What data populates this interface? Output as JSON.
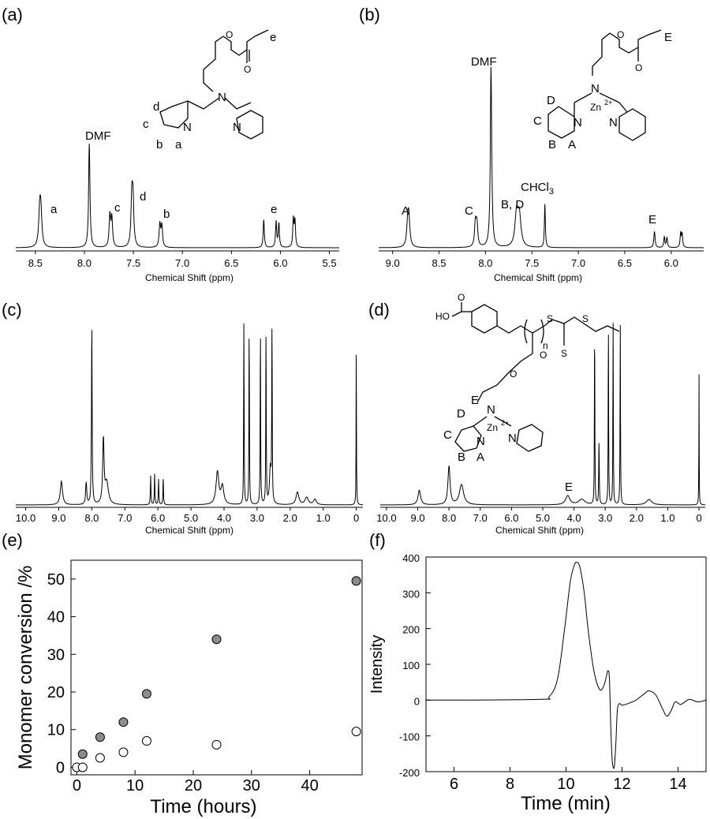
{
  "chart_data": [
    {
      "type": "line",
      "panel_label": "(a)",
      "xlabel": "Chemical Shift (ppm)",
      "xticks": [
        "8.5",
        "8.0",
        "7.5",
        "7.0",
        "6.5",
        "6.0",
        "5.5"
      ],
      "xlim": [
        8.7,
        5.4
      ],
      "series": [
        {
          "peaks": [
            {
              "x": 8.45,
              "h": 0.33,
              "w": 0.012,
              "label": "a",
              "split": 0.012
            },
            {
              "x": 7.95,
              "h": 1.0,
              "w": 0.008,
              "label": "DMF"
            },
            {
              "x": 7.73,
              "h": 0.3,
              "w": 0.009,
              "label": "c",
              "split": 0.02
            },
            {
              "x": 7.51,
              "h": 0.45,
              "w": 0.01,
              "label": "d",
              "split": 0.012
            },
            {
              "x": 7.22,
              "h": 0.22,
              "w": 0.009,
              "label": "b",
              "split": 0.02
            },
            {
              "x": 6.17,
              "h": 0.27,
              "w": 0.007
            },
            {
              "x": 6.03,
              "h": 0.25,
              "w": 0.007,
              "label": "e",
              "split": 0.028
            },
            {
              "x": 5.86,
              "h": 0.27,
              "w": 0.007,
              "split": 0.016
            }
          ]
        }
      ],
      "peak_labels": [
        "a",
        "DMF",
        "c",
        "d",
        "b",
        "e"
      ]
    },
    {
      "type": "line",
      "panel_label": "(b)",
      "xlabel": "Chemical Shift (ppm)",
      "xticks": [
        "9.0",
        "8.5",
        "8.0",
        "7.5",
        "7.0",
        "6.5",
        "6.0"
      ],
      "xlim": [
        9.15,
        5.65
      ],
      "series": [
        {
          "peaks": [
            {
              "x": 8.83,
              "h": 0.14,
              "w": 0.013,
              "split": 0.012
            },
            {
              "x": 8.1,
              "h": 0.13,
              "w": 0.011,
              "split": 0.016
            },
            {
              "x": 7.94,
              "h": 1.0,
              "w": 0.009
            },
            {
              "x": 7.65,
              "h": 0.18,
              "w": 0.02,
              "split": 0.03
            },
            {
              "x": 7.36,
              "h": 0.24,
              "w": 0.006
            },
            {
              "x": 6.18,
              "h": 0.09,
              "w": 0.008
            },
            {
              "x": 6.06,
              "h": 0.06,
              "w": 0.007,
              "split": 0.028
            },
            {
              "x": 5.89,
              "h": 0.08,
              "w": 0.007,
              "split": 0.016
            }
          ]
        }
      ],
      "peak_labels": [
        "A",
        "DMF",
        "B, D",
        "CHCl3",
        "C",
        "E"
      ]
    },
    {
      "type": "line",
      "panel_label": "(c)",
      "xlabel": "Chemical Shift (ppm)",
      "xticks": [
        "10.0",
        "9.0",
        "8.0",
        "7.0",
        "6.0",
        "5.0",
        "4.0",
        "3.0",
        "2.0",
        "1.0",
        "0"
      ],
      "xlim": [
        10.3,
        -0.2
      ],
      "series": [
        {
          "peaks": [
            {
              "x": 8.92,
              "h": 0.13,
              "w": 0.04
            },
            {
              "x": 8.17,
              "h": 0.12,
              "w": 0.02
            },
            {
              "x": 8.0,
              "h": 1.0,
              "w": 0.012
            },
            {
              "x": 7.65,
              "h": 0.35,
              "w": 0.025
            },
            {
              "x": 7.55,
              "h": 0.12,
              "w": 0.06
            },
            {
              "x": 6.22,
              "h": 0.16,
              "w": 0.01
            },
            {
              "x": 6.1,
              "h": 0.17,
              "w": 0.01
            },
            {
              "x": 5.98,
              "h": 0.14,
              "w": 0.01
            },
            {
              "x": 5.84,
              "h": 0.15,
              "w": 0.01
            },
            {
              "x": 4.2,
              "h": 0.18,
              "w": 0.05
            },
            {
              "x": 4.05,
              "h": 0.1,
              "w": 0.05
            },
            {
              "x": 3.4,
              "h": 1.0,
              "w": 0.008
            },
            {
              "x": 3.24,
              "h": 1.0,
              "w": 0.008
            },
            {
              "x": 2.9,
              "h": 1.0,
              "w": 0.008
            },
            {
              "x": 2.73,
              "h": 1.0,
              "w": 0.008
            },
            {
              "x": 2.55,
              "h": 1.0,
              "w": 0.008
            },
            {
              "x": 2.6,
              "h": 0.2,
              "w": 0.03
            },
            {
              "x": 1.78,
              "h": 0.07,
              "w": 0.05
            },
            {
              "x": 1.5,
              "h": 0.04,
              "w": 0.06
            },
            {
              "x": 1.25,
              "h": 0.03,
              "w": 0.05
            },
            {
              "x": 0.0,
              "h": 0.97,
              "w": 0.006
            }
          ]
        }
      ]
    },
    {
      "type": "line",
      "panel_label": "(d)",
      "xlabel": "Chemical Shift (ppm)",
      "xticks": [
        "10.0",
        "9.0",
        "8.0",
        "7.0",
        "6.0",
        "5.0",
        "4.0",
        "3.0",
        "2.0",
        "1.0",
        "0"
      ],
      "xlim": [
        10.2,
        -0.2
      ],
      "series": [
        {
          "peaks": [
            {
              "x": 8.95,
              "h": 0.08,
              "w": 0.05
            },
            {
              "x": 8.0,
              "h": 0.21,
              "w": 0.04
            },
            {
              "x": 7.6,
              "h": 0.11,
              "w": 0.08
            },
            {
              "x": 4.2,
              "h": 0.05,
              "w": 0.08
            },
            {
              "x": 3.75,
              "h": 0.03,
              "w": 0.12
            },
            {
              "x": 3.34,
              "h": 1.0,
              "w": 0.008
            },
            {
              "x": 3.2,
              "h": 0.35,
              "w": 0.01
            },
            {
              "x": 2.9,
              "h": 1.0,
              "w": 0.008
            },
            {
              "x": 2.75,
              "h": 1.0,
              "w": 0.008
            },
            {
              "x": 2.52,
              "h": 1.0,
              "w": 0.008
            },
            {
              "x": 1.6,
              "h": 0.03,
              "w": 0.1
            },
            {
              "x": 0.0,
              "h": 0.72,
              "w": 0.006
            }
          ]
        }
      ],
      "peak_labels": [
        "E"
      ]
    },
    {
      "type": "scatter",
      "panel_label": "(e)",
      "xlabel": "Time (hours)",
      "ylabel": "Monomer conversion /%",
      "xlim": [
        -1,
        49
      ],
      "ylim": [
        -2,
        55
      ],
      "xticks": [
        "0",
        "10",
        "20",
        "30",
        "40"
      ],
      "yticks": [
        "0",
        "10",
        "20",
        "30",
        "40",
        "50"
      ],
      "series": [
        {
          "fill": "#8c8c8c",
          "x": [
            1,
            4,
            8,
            12,
            24,
            48
          ],
          "y": [
            3.5,
            8,
            12,
            19.5,
            34,
            49.5
          ]
        },
        {
          "fill": "#ffffff",
          "x": [
            0,
            1,
            4,
            8,
            12,
            24,
            48
          ],
          "y": [
            0,
            0,
            2.5,
            4,
            7,
            6,
            9.5
          ]
        }
      ]
    },
    {
      "type": "line",
      "panel_label": "(f)",
      "xlabel": "Time (min)",
      "ylabel": "Intensity",
      "xlim": [
        5,
        15
      ],
      "ylim": [
        -200,
        400
      ],
      "xticks": [
        "6",
        "8",
        "10",
        "12",
        "14"
      ],
      "yticks": [
        "400",
        "300",
        "200",
        "100",
        "0",
        "-100",
        "-200"
      ],
      "series": [
        {
          "x": [
            5,
            9.0,
            9.4,
            9.7,
            9.95,
            10.15,
            10.3,
            10.4,
            10.5,
            10.65,
            10.8,
            11.0,
            11.2,
            11.35,
            11.45,
            11.5,
            11.55,
            11.6,
            11.65,
            11.72,
            11.78,
            11.83,
            11.9,
            12.0,
            12.2,
            12.5,
            12.8,
            12.95,
            13.2,
            13.45,
            13.6,
            13.75,
            13.9,
            14.1,
            14.4,
            14.7,
            15
          ],
          "y": [
            0,
            2,
            10,
            60,
            200,
            330,
            378,
            385,
            370,
            300,
            190,
            80,
            30,
            40,
            70,
            82,
            60,
            -80,
            -170,
            -188,
            -120,
            -30,
            -10,
            -14,
            -10,
            0,
            18,
            26,
            15,
            -25,
            -45,
            -30,
            -5,
            -12,
            2,
            -5,
            0
          ]
        }
      ]
    }
  ],
  "text_labels": {
    "a": {
      "peak_a": "a",
      "peak_c": "c",
      "peak_d": "d",
      "peak_b": "b",
      "peak_e": "e",
      "dmf": "DMF",
      "struct": {
        "o": "O",
        "n": "N",
        "e": "e",
        "d": "d",
        "c": "c",
        "b": "b",
        "a": "a"
      }
    },
    "b": {
      "peak_A": "A",
      "peak_C": "C",
      "peak_BD": "B, D",
      "chcl3": "CHCl",
      "chcl3_sub": "3",
      "peak_E": "E",
      "dmf": "DMF",
      "struct": {
        "o": "O",
        "n": "N",
        "zn": "Zn",
        "zn_charge": "2+",
        "E": "E",
        "D": "D",
        "C": "C",
        "B": "B",
        "A": "A"
      }
    },
    "d": {
      "peak_E": "E",
      "struct": {
        "ho": "HO",
        "o": "O",
        "s": "S",
        "n_sub": "n",
        "n": "N",
        "zn": "Zn",
        "zn_charge": "2+",
        "E": "E",
        "D": "D",
        "C": "C",
        "B": "B",
        "A": "A"
      }
    }
  }
}
